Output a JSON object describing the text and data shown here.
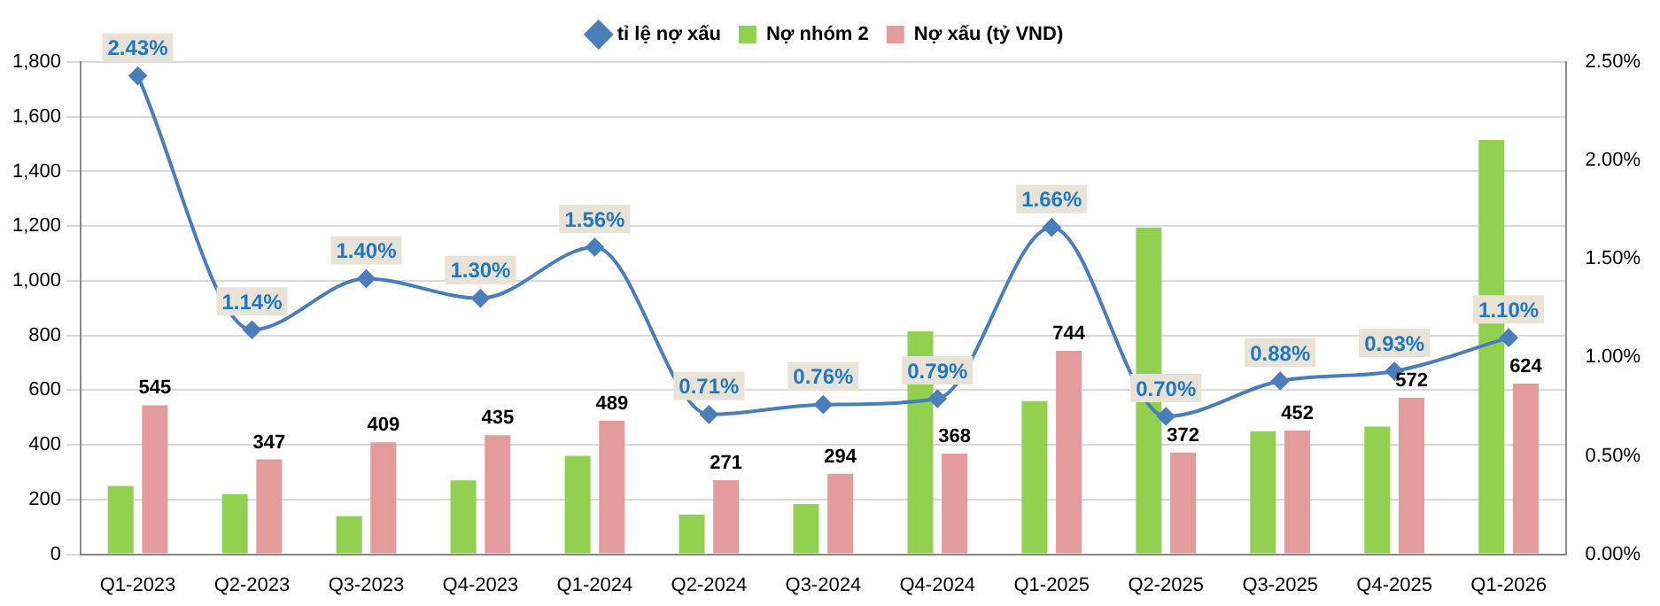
{
  "chart_data": {
    "type": "bar",
    "categories": [
      "Q1-2023",
      "Q2-2023",
      "Q3-2023",
      "Q4-2023",
      "Q1-2024",
      "Q2-2024",
      "Q3-2024",
      "Q4-2024",
      "Q1-2025",
      "Q2-2025",
      "Q3-2025",
      "Q4-2025",
      "Q1-2026"
    ],
    "series": [
      {
        "name": "Nợ nhóm 2",
        "color": "#92d050",
        "values": [
          250,
          220,
          140,
          270,
          360,
          145,
          183,
          815,
          560,
          1195,
          450,
          467,
          1515
        ]
      },
      {
        "name": "Nợ xấu (tỷ VND)",
        "color": "#e39b9b",
        "values": [
          545,
          347,
          409,
          435,
          489,
          271,
          294,
          368,
          744,
          372,
          452,
          572,
          624
        ],
        "value_labels": [
          "545",
          "347",
          "409",
          "435",
          "489",
          "271",
          "294",
          "368",
          "744",
          "372",
          "452",
          "572",
          "624"
        ]
      },
      {
        "name": "tỉ lệ nợ xấu",
        "type": "line",
        "axis": "y2",
        "color": "#4a7ebb",
        "marker": "diamond",
        "values": [
          2.43,
          1.14,
          1.4,
          1.3,
          1.56,
          0.71,
          0.76,
          0.79,
          1.66,
          0.7,
          0.88,
          0.93,
          1.1
        ],
        "value_labels": [
          "2.43%",
          "1.14%",
          "1.40%",
          "1.30%",
          "1.56%",
          "0.71%",
          "0.76%",
          "0.79%",
          "1.66%",
          "0.70%",
          "0.88%",
          "0.93%",
          "1.10%"
        ]
      }
    ],
    "ylim": [
      0,
      1800
    ],
    "yticks": [
      0,
      200,
      400,
      600,
      800,
      {
        "value": 1000,
        "label": "1,000"
      },
      {
        "value": 1200,
        "label": "1,200"
      },
      {
        "value": 1400,
        "label": "1,400"
      },
      {
        "value": 1600,
        "label": "1,600"
      },
      {
        "value": 1800,
        "label": "1,800"
      }
    ],
    "y2lim": [
      0,
      2.5
    ],
    "y2ticks": [
      {
        "value": 0,
        "label": "0.00%"
      },
      {
        "value": 0.5,
        "label": "0.50%"
      },
      {
        "value": 1,
        "label": "1.00%"
      },
      {
        "value": 1.5,
        "label": "1.50%"
      },
      {
        "value": 2,
        "label": "2.00%"
      },
      {
        "value": 2.5,
        "label": "2.50%"
      }
    ],
    "grid": "y",
    "legend": "top"
  }
}
